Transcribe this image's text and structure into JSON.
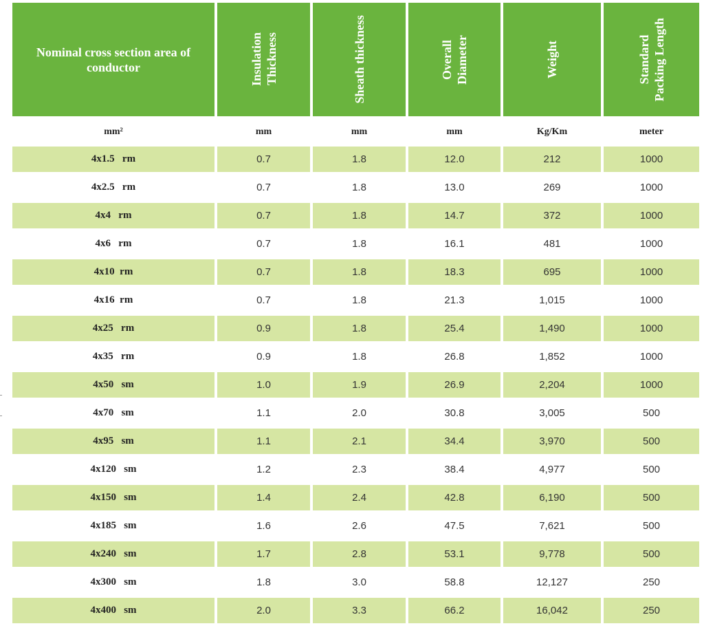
{
  "headers": [
    "Nominal cross section area of conductor",
    "Insulation\nThickness",
    "Sheath thickness",
    "Overall\nDiameter",
    "Weight",
    "Standard\nPacking Length"
  ],
  "units": [
    "mm²",
    "mm",
    "mm",
    "mm",
    "Kg/Km",
    "meter"
  ],
  "rows": [
    [
      "4x1.5   rm",
      "0.7",
      "1.8",
      "12.0",
      "212",
      "1000"
    ],
    [
      "4x2.5   rm",
      "0.7",
      "1.8",
      "13.0",
      "269",
      "1000"
    ],
    [
      "4x4   rm",
      "0.7",
      "1.8",
      "14.7",
      "372",
      "1000"
    ],
    [
      "4x6   rm",
      "0.7",
      "1.8",
      "16.1",
      "481",
      "1000"
    ],
    [
      "4x10  rm",
      "0.7",
      "1.8",
      "18.3",
      "695",
      "1000"
    ],
    [
      "4x16  rm",
      "0.7",
      "1.8",
      "21.3",
      "1,015",
      "1000"
    ],
    [
      "4x25   rm",
      "0.9",
      "1.8",
      "25.4",
      "1,490",
      "1000"
    ],
    [
      "4x35   rm",
      "0.9",
      "1.8",
      "26.8",
      "1,852",
      "1000"
    ],
    [
      "4x50   sm",
      "1.0",
      "1.9",
      "26.9",
      "2,204",
      "1000"
    ],
    [
      "4x70   sm",
      "1.1",
      "2.0",
      "30.8",
      "3,005",
      "500"
    ],
    [
      "4x95   sm",
      "1.1",
      "2.1",
      "34.4",
      "3,970",
      "500"
    ],
    [
      "4x120   sm",
      "1.2",
      "2.3",
      "38.4",
      "4,977",
      "500"
    ],
    [
      "4x150   sm",
      "1.4",
      "2.4",
      "42.8",
      "6,190",
      "500"
    ],
    [
      "4x185   sm",
      "1.6",
      "2.6",
      "47.5",
      "7,621",
      "500"
    ],
    [
      "4x240   sm",
      "1.7",
      "2.8",
      "53.1",
      "9,778",
      "500"
    ],
    [
      "4x300   sm",
      "1.8",
      "3.0",
      "58.8",
      "12,127",
      "250"
    ],
    [
      "4x400   sm",
      "2.0",
      "3.3",
      "66.2",
      "16,042",
      "250"
    ]
  ],
  "colors": {
    "header_bg": "#6ab43e",
    "row_shade": "#d6e6a3"
  }
}
